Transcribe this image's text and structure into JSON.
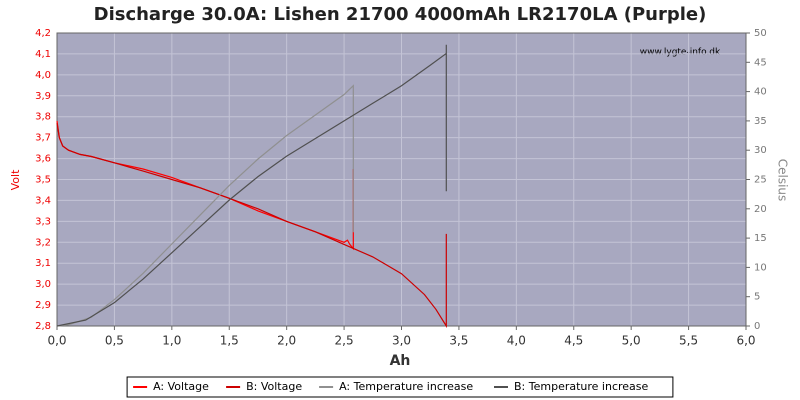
{
  "chart_data": {
    "type": "line",
    "title": "Discharge 30.0A: Lishen 21700 4000mAh LR2170LA (Purple)",
    "watermark": "www.lygte-info.dk",
    "xlabel": "Ah",
    "ylabel": "Volt",
    "y2label": "Celsius",
    "xlim": [
      0,
      6
    ],
    "ylim": [
      2.8,
      4.2
    ],
    "y2lim": [
      0,
      50
    ],
    "grid": true,
    "xticks": [
      {
        "value": 0,
        "label": "0,0"
      },
      {
        "value": 0.5,
        "label": "0,5"
      },
      {
        "value": 1,
        "label": "1,0"
      },
      {
        "value": 1.5,
        "label": "1,5"
      },
      {
        "value": 2,
        "label": "2,0"
      },
      {
        "value": 2.5,
        "label": "2,5"
      },
      {
        "value": 3,
        "label": "3,0"
      },
      {
        "value": 3.5,
        "label": "3,5"
      },
      {
        "value": 4,
        "label": "4,0"
      },
      {
        "value": 4.5,
        "label": "4,5"
      },
      {
        "value": 5,
        "label": "5,0"
      },
      {
        "value": 5.5,
        "label": "5,5"
      },
      {
        "value": 6,
        "label": "6,0"
      }
    ],
    "yticks": [
      {
        "value": 2.8,
        "label": "2,8"
      },
      {
        "value": 2.9,
        "label": "2,9"
      },
      {
        "value": 3.0,
        "label": "3,0"
      },
      {
        "value": 3.1,
        "label": "3,1"
      },
      {
        "value": 3.2,
        "label": "3,2"
      },
      {
        "value": 3.3,
        "label": "3,3"
      },
      {
        "value": 3.4,
        "label": "3,4"
      },
      {
        "value": 3.5,
        "label": "3,5"
      },
      {
        "value": 3.6,
        "label": "3,6"
      },
      {
        "value": 3.7,
        "label": "3,7"
      },
      {
        "value": 3.8,
        "label": "3,8"
      },
      {
        "value": 3.9,
        "label": "3,9"
      },
      {
        "value": 4.0,
        "label": "4,0"
      },
      {
        "value": 4.1,
        "label": "4,1"
      },
      {
        "value": 4.2,
        "label": "4,2"
      }
    ],
    "y2ticks": [
      0,
      5,
      10,
      15,
      20,
      25,
      30,
      35,
      40,
      45,
      50
    ],
    "series": [
      {
        "name": "A: Voltage",
        "color": "#ff0000",
        "x": [
          0,
          0.02,
          0.05,
          0.1,
          0.2,
          0.3,
          0.5,
          0.75,
          1.0,
          1.25,
          1.5,
          1.75,
          2.0,
          2.25,
          2.5,
          2.53,
          2.55,
          2.58,
          2.58
        ],
        "values": [
          3.78,
          3.7,
          3.66,
          3.64,
          3.62,
          3.61,
          3.58,
          3.55,
          3.51,
          3.46,
          3.41,
          3.35,
          3.3,
          3.25,
          3.2,
          3.21,
          3.19,
          3.17,
          3.55
        ]
      },
      {
        "name": "B: Voltage",
        "color": "#cc0000",
        "x": [
          0,
          0.02,
          0.05,
          0.1,
          0.2,
          0.3,
          0.5,
          0.75,
          1.0,
          1.25,
          1.5,
          1.75,
          2.0,
          2.25,
          2.5,
          2.75,
          3.0,
          3.2,
          3.3,
          3.39,
          3.39
        ],
        "values": [
          3.77,
          3.7,
          3.66,
          3.64,
          3.62,
          3.61,
          3.58,
          3.54,
          3.5,
          3.46,
          3.41,
          3.36,
          3.3,
          3.25,
          3.19,
          3.13,
          3.05,
          2.95,
          2.88,
          2.8,
          3.24
        ]
      },
      {
        "name": "A: Temperature increase",
        "color": "#909090",
        "axis": "y2",
        "x": [
          0,
          0.1,
          0.3,
          0.5,
          0.75,
          1.0,
          1.25,
          1.5,
          1.75,
          2.0,
          2.25,
          2.5,
          2.58,
          2.58
        ],
        "values": [
          0,
          0.2,
          1.5,
          4.5,
          9,
          14,
          19,
          24,
          28.5,
          32.5,
          36,
          39.5,
          41,
          16
        ]
      },
      {
        "name": "B: Temperature increase",
        "color": "#505050",
        "axis": "y2",
        "x": [
          0,
          0.25,
          0.5,
          0.75,
          1.0,
          1.25,
          1.5,
          1.75,
          2.0,
          2.25,
          2.5,
          2.75,
          3.0,
          3.25,
          3.39,
          3.39,
          3.39
        ],
        "values": [
          0,
          1,
          4,
          8,
          12.5,
          17,
          21.5,
          25.5,
          29,
          32,
          35,
          38,
          41,
          44.5,
          46.5,
          48,
          23
        ]
      }
    ]
  }
}
